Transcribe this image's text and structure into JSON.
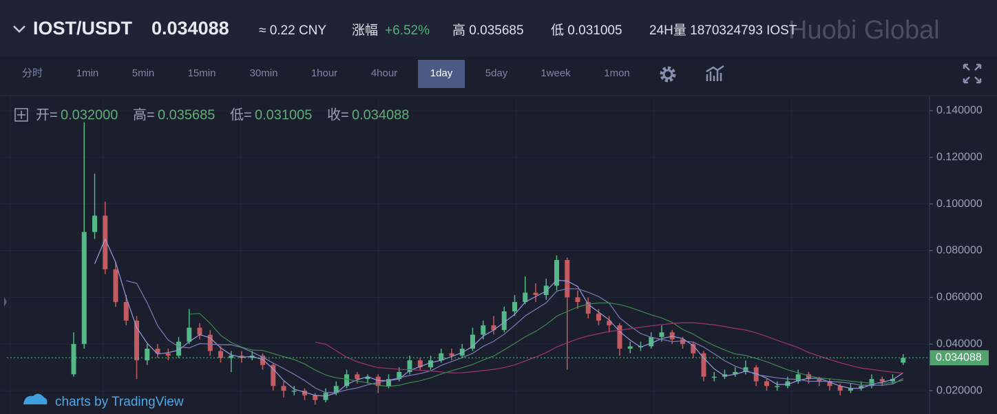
{
  "header": {
    "pair": "IOST/USDT",
    "price": "0.034088",
    "cny": "≈ 0.22 CNY",
    "change_label": "涨幅",
    "change": "+6.52%",
    "high": "高 0.035685",
    "low": "低 0.031005",
    "volume": "24H量 1870324793 IOST"
  },
  "watermark": "Huobi Global",
  "toolbar": {
    "intervals": [
      "分时",
      "1min",
      "5min",
      "15min",
      "30min",
      "1hour",
      "4hour",
      "1day",
      "5day",
      "1week",
      "1mon"
    ],
    "active": "1day"
  },
  "legend": {
    "items": [
      {
        "label": "开=",
        "value": "0.032000"
      },
      {
        "label": "高=",
        "value": "0.035685"
      },
      {
        "label": "低=",
        "value": "0.031005"
      },
      {
        "label": "收=",
        "value": "0.034088"
      }
    ]
  },
  "attribution": "charts by TradingView",
  "chart_data": {
    "type": "candlestick",
    "open": [
      0.027,
      0.04,
      0.088,
      0.095,
      0.072,
      0.058,
      0.05,
      0.033,
      0.038,
      0.036,
      0.035,
      0.041,
      0.047,
      0.044,
      0.037,
      0.034,
      0.035,
      0.034,
      0.035,
      0.031,
      0.022,
      0.02,
      0.02,
      0.018,
      0.016,
      0.019,
      0.022,
      0.027,
      0.025,
      0.026,
      0.022,
      0.025,
      0.028,
      0.033,
      0.03,
      0.033,
      0.036,
      0.035,
      0.038,
      0.044,
      0.048,
      0.046,
      0.054,
      0.058,
      0.062,
      0.061,
      0.065,
      0.076,
      0.06,
      0.058,
      0.053,
      0.05,
      0.048,
      0.038,
      0.039,
      0.039,
      0.043,
      0.045,
      0.042,
      0.04,
      0.036,
      0.026,
      0.026,
      0.027,
      0.028,
      0.03,
      0.024,
      0.022,
      0.022,
      0.024,
      0.027,
      0.025,
      0.024,
      0.022,
      0.02,
      0.021,
      0.022,
      0.025,
      0.024,
      0.032
    ],
    "high": [
      0.045,
      0.135,
      0.113,
      0.101,
      0.075,
      0.061,
      0.052,
      0.04,
      0.04,
      0.038,
      0.043,
      0.055,
      0.049,
      0.046,
      0.039,
      0.037,
      0.037,
      0.037,
      0.036,
      0.032,
      0.024,
      0.022,
      0.021,
      0.019,
      0.021,
      0.024,
      0.029,
      0.028,
      0.027,
      0.027,
      0.027,
      0.03,
      0.035,
      0.034,
      0.035,
      0.038,
      0.038,
      0.04,
      0.047,
      0.05,
      0.052,
      0.056,
      0.061,
      0.069,
      0.066,
      0.068,
      0.078,
      0.077,
      0.063,
      0.06,
      0.055,
      0.052,
      0.049,
      0.041,
      0.041,
      0.045,
      0.048,
      0.046,
      0.043,
      0.041,
      0.037,
      0.028,
      0.029,
      0.03,
      0.033,
      0.031,
      0.025,
      0.024,
      0.026,
      0.029,
      0.028,
      0.026,
      0.025,
      0.023,
      0.023,
      0.024,
      0.027,
      0.026,
      0.027,
      0.035685
    ],
    "low": [
      0.026,
      0.038,
      0.085,
      0.07,
      0.056,
      0.048,
      0.025,
      0.031,
      0.034,
      0.033,
      0.034,
      0.04,
      0.042,
      0.035,
      0.032,
      0.028,
      0.032,
      0.033,
      0.029,
      0.02,
      0.017,
      0.018,
      0.016,
      0.014,
      0.015,
      0.018,
      0.021,
      0.023,
      0.023,
      0.019,
      0.021,
      0.024,
      0.027,
      0.029,
      0.029,
      0.032,
      0.033,
      0.034,
      0.037,
      0.042,
      0.044,
      0.045,
      0.052,
      0.057,
      0.058,
      0.059,
      0.063,
      0.029,
      0.055,
      0.051,
      0.048,
      0.045,
      0.035,
      0.036,
      0.037,
      0.038,
      0.041,
      0.04,
      0.038,
      0.034,
      0.024,
      0.024,
      0.025,
      0.026,
      0.027,
      0.022,
      0.02,
      0.02,
      0.021,
      0.023,
      0.023,
      0.022,
      0.02,
      0.018,
      0.019,
      0.02,
      0.021,
      0.022,
      0.023,
      0.031005
    ],
    "close": [
      0.04,
      0.088,
      0.095,
      0.072,
      0.058,
      0.05,
      0.033,
      0.038,
      0.036,
      0.035,
      0.041,
      0.047,
      0.044,
      0.037,
      0.034,
      0.035,
      0.034,
      0.035,
      0.031,
      0.022,
      0.02,
      0.02,
      0.018,
      0.016,
      0.019,
      0.022,
      0.027,
      0.025,
      0.026,
      0.022,
      0.025,
      0.028,
      0.033,
      0.03,
      0.033,
      0.036,
      0.035,
      0.038,
      0.044,
      0.048,
      0.046,
      0.054,
      0.058,
      0.062,
      0.061,
      0.065,
      0.076,
      0.06,
      0.058,
      0.053,
      0.05,
      0.048,
      0.038,
      0.039,
      0.039,
      0.043,
      0.045,
      0.042,
      0.04,
      0.036,
      0.026,
      0.026,
      0.027,
      0.028,
      0.03,
      0.024,
      0.022,
      0.022,
      0.024,
      0.027,
      0.025,
      0.024,
      0.022,
      0.02,
      0.021,
      0.022,
      0.025,
      0.024,
      0.025,
      0.034088
    ],
    "up_color": "#53b987",
    "down_color": "#c65a61",
    "moving_averages": [
      {
        "window": 3,
        "color": "#9a9ce0"
      },
      {
        "window": 6,
        "color": "#7c7fb8"
      },
      {
        "window": 12,
        "color": "#3e8a52"
      },
      {
        "window": 24,
        "color": "#a3356f"
      }
    ],
    "last_price": 0.034088,
    "ylim": [
      0.01,
      0.1447
    ],
    "yticks": [
      {
        "value": 0.02,
        "label": "0.020000"
      },
      {
        "value": 0.04,
        "label": "0.040000"
      },
      {
        "value": 0.06,
        "label": "0.060000"
      },
      {
        "value": 0.08,
        "label": "0.080000"
      },
      {
        "value": 0.1,
        "label": "0.100000"
      },
      {
        "value": 0.12,
        "label": "0.120000"
      },
      {
        "value": 0.14,
        "label": "0.140000"
      }
    ]
  }
}
